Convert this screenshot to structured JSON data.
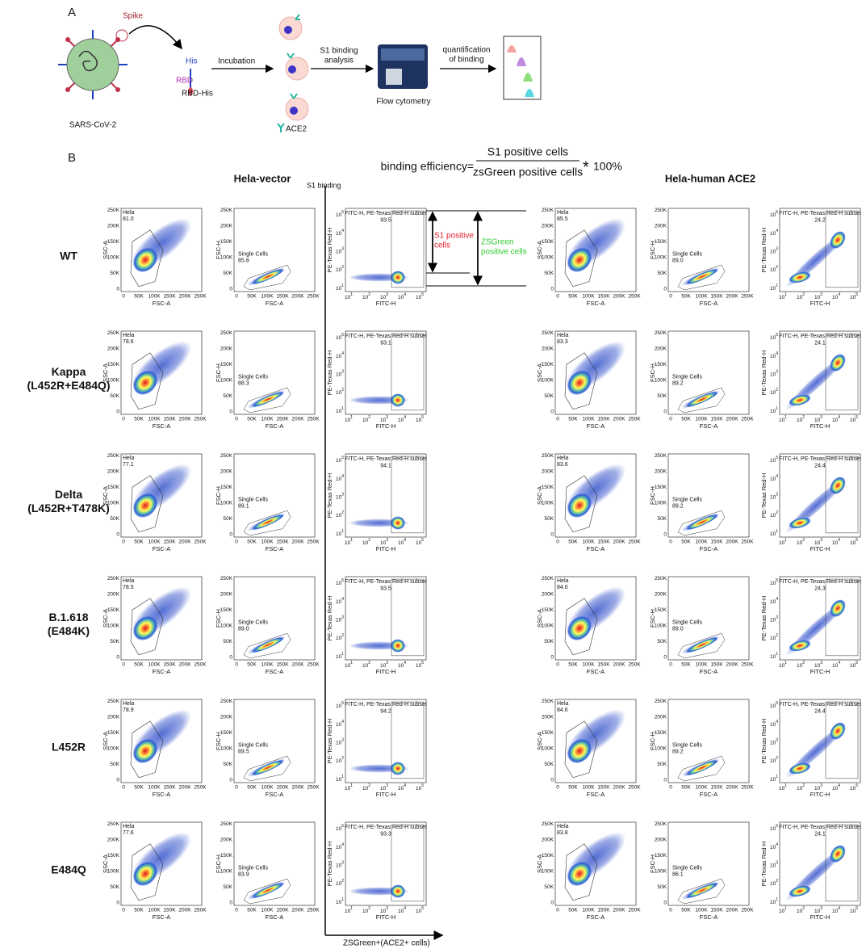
{
  "panel_a": {
    "label": "A",
    "spike": "Spike",
    "his": "His",
    "rbd": "RBD",
    "rbd_his": "RBD-His",
    "virus": "SARS-CoV-2",
    "incubation": "Incubation",
    "ace2": "ACE2",
    "s1_binding_analysis": [
      "S1 binding",
      "analysis"
    ],
    "flow_cytometry": "Flow cytometry",
    "quantification": [
      "quantification",
      "of binding"
    ]
  },
  "panel_b": {
    "label": "B",
    "formula": {
      "lhs": "binding efficiency=",
      "numerator": "S1 positive cells",
      "denominator": "zsGreen positive cells",
      "times": "*",
      "rhs": "100%"
    },
    "column_titles": [
      "Hela-vector",
      "Hela-human ACE2"
    ],
    "s1_binding": "S1 binding",
    "x_arrow_label": "ZSGreen+(ACE2+ cells)",
    "annotations": {
      "s1_positive": [
        "S1 positive",
        "cells"
      ],
      "zsgreen_positive": [
        "ZSGreen",
        "positive cells"
      ]
    },
    "axes": {
      "linear_ticks": [
        "0",
        "50K",
        "100K",
        "150K",
        "200K",
        "250K"
      ],
      "log_base": "10",
      "log_exponents": [
        "1",
        "2",
        "3",
        "4",
        "5"
      ],
      "fsc_a": "FSC-A",
      "ssc_a": "SSC-A",
      "fsc_h": "FSC-H",
      "pe_texas": "PE-Texas Red-H",
      "fitc_h": "FITC-H"
    },
    "gates": {
      "hela": "Hela",
      "single": "Single Cells",
      "fitc": "FITC-H, PE-Texas Red-H subset"
    },
    "rows": [
      {
        "name": [
          "WT"
        ],
        "vector": [
          "81.0",
          "85.8",
          "93.5"
        ],
        "ace2": [
          "85.5",
          "89.0",
          "24.2"
        ]
      },
      {
        "name": [
          "Kappa",
          "(L452R+E484Q)"
        ],
        "vector": [
          "78.6",
          "88.3",
          "93.1"
        ],
        "ace2": [
          "83.3",
          "89.2",
          "24.1"
        ]
      },
      {
        "name": [
          "Delta",
          "(L452R+T478K)"
        ],
        "vector": [
          "77.1",
          "89.1",
          "94.1"
        ],
        "ace2": [
          "83.6",
          "89.2",
          "24.4"
        ]
      },
      {
        "name": [
          "B.1.618",
          "(E484K)"
        ],
        "vector": [
          "78.5",
          "89.0",
          "93.5"
        ],
        "ace2": [
          "84.0",
          "89.0",
          "24.3"
        ]
      },
      {
        "name": [
          "L452R"
        ],
        "vector": [
          "78.9",
          "89.5",
          "94.2"
        ],
        "ace2": [
          "84.6",
          "89.2",
          "24.4"
        ]
      },
      {
        "name": [
          "E484Q"
        ],
        "vector": [
          "77.6",
          "83.9",
          "93.3"
        ],
        "ace2": [
          "83.8",
          "86.1",
          "24.1"
        ]
      }
    ]
  }
}
